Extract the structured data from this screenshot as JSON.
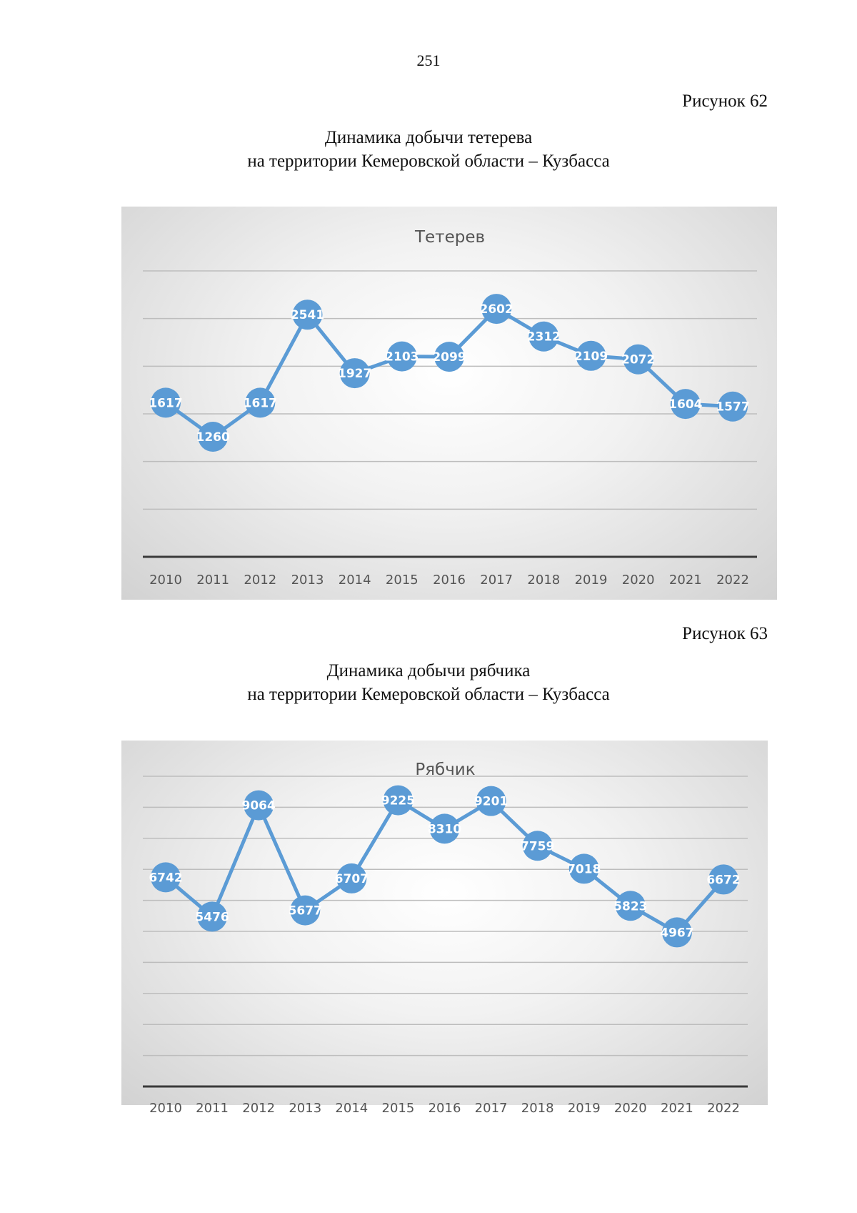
{
  "page_number": "251",
  "figures": [
    {
      "figure_label": "Рисунок 62",
      "caption_line1": "Динамика добычи тетерева",
      "caption_line2": "на территории Кемеровской области – Кузбасса"
    },
    {
      "figure_label": "Рисунок 63",
      "caption_line1": "Динамика добычи рябчика",
      "caption_line2": "на территории Кемеровской области – Кузбасса"
    }
  ],
  "chart_data": [
    {
      "type": "line",
      "title": "Тетерев",
      "xlabel": "",
      "ylabel": "",
      "categories": [
        "2010",
        "2011",
        "2012",
        "2013",
        "2014",
        "2015",
        "2016",
        "2017",
        "2018",
        "2019",
        "2020",
        "2021",
        "2022"
      ],
      "values": [
        1617,
        1260,
        1617,
        2541,
        1927,
        2103,
        2099,
        2602,
        2312,
        2109,
        2072,
        1604,
        1577
      ],
      "ylim": [
        0,
        3000
      ],
      "grid": true,
      "legend": "none",
      "line_color": "#5b9bd5"
    },
    {
      "type": "line",
      "title": "Рябчик",
      "xlabel": "",
      "ylabel": "",
      "categories": [
        "2010",
        "2011",
        "2012",
        "2013",
        "2014",
        "2015",
        "2016",
        "2017",
        "2018",
        "2019",
        "2020",
        "2021",
        "2022"
      ],
      "values": [
        6742,
        5476,
        9064,
        5677,
        6707,
        9225,
        8310,
        9201,
        7759,
        7018,
        5823,
        4967,
        6672
      ],
      "value_labels": [
        "6742",
        "5476",
        "9064",
        "5677",
        "6707",
        "9225",
        "8310",
        "9201",
        "7759",
        "7018",
        "5823",
        "4967",
        "6672"
      ],
      "ylim": [
        0,
        10000
      ],
      "grid": true,
      "legend": "none",
      "line_color": "#5b9bd5"
    }
  ]
}
